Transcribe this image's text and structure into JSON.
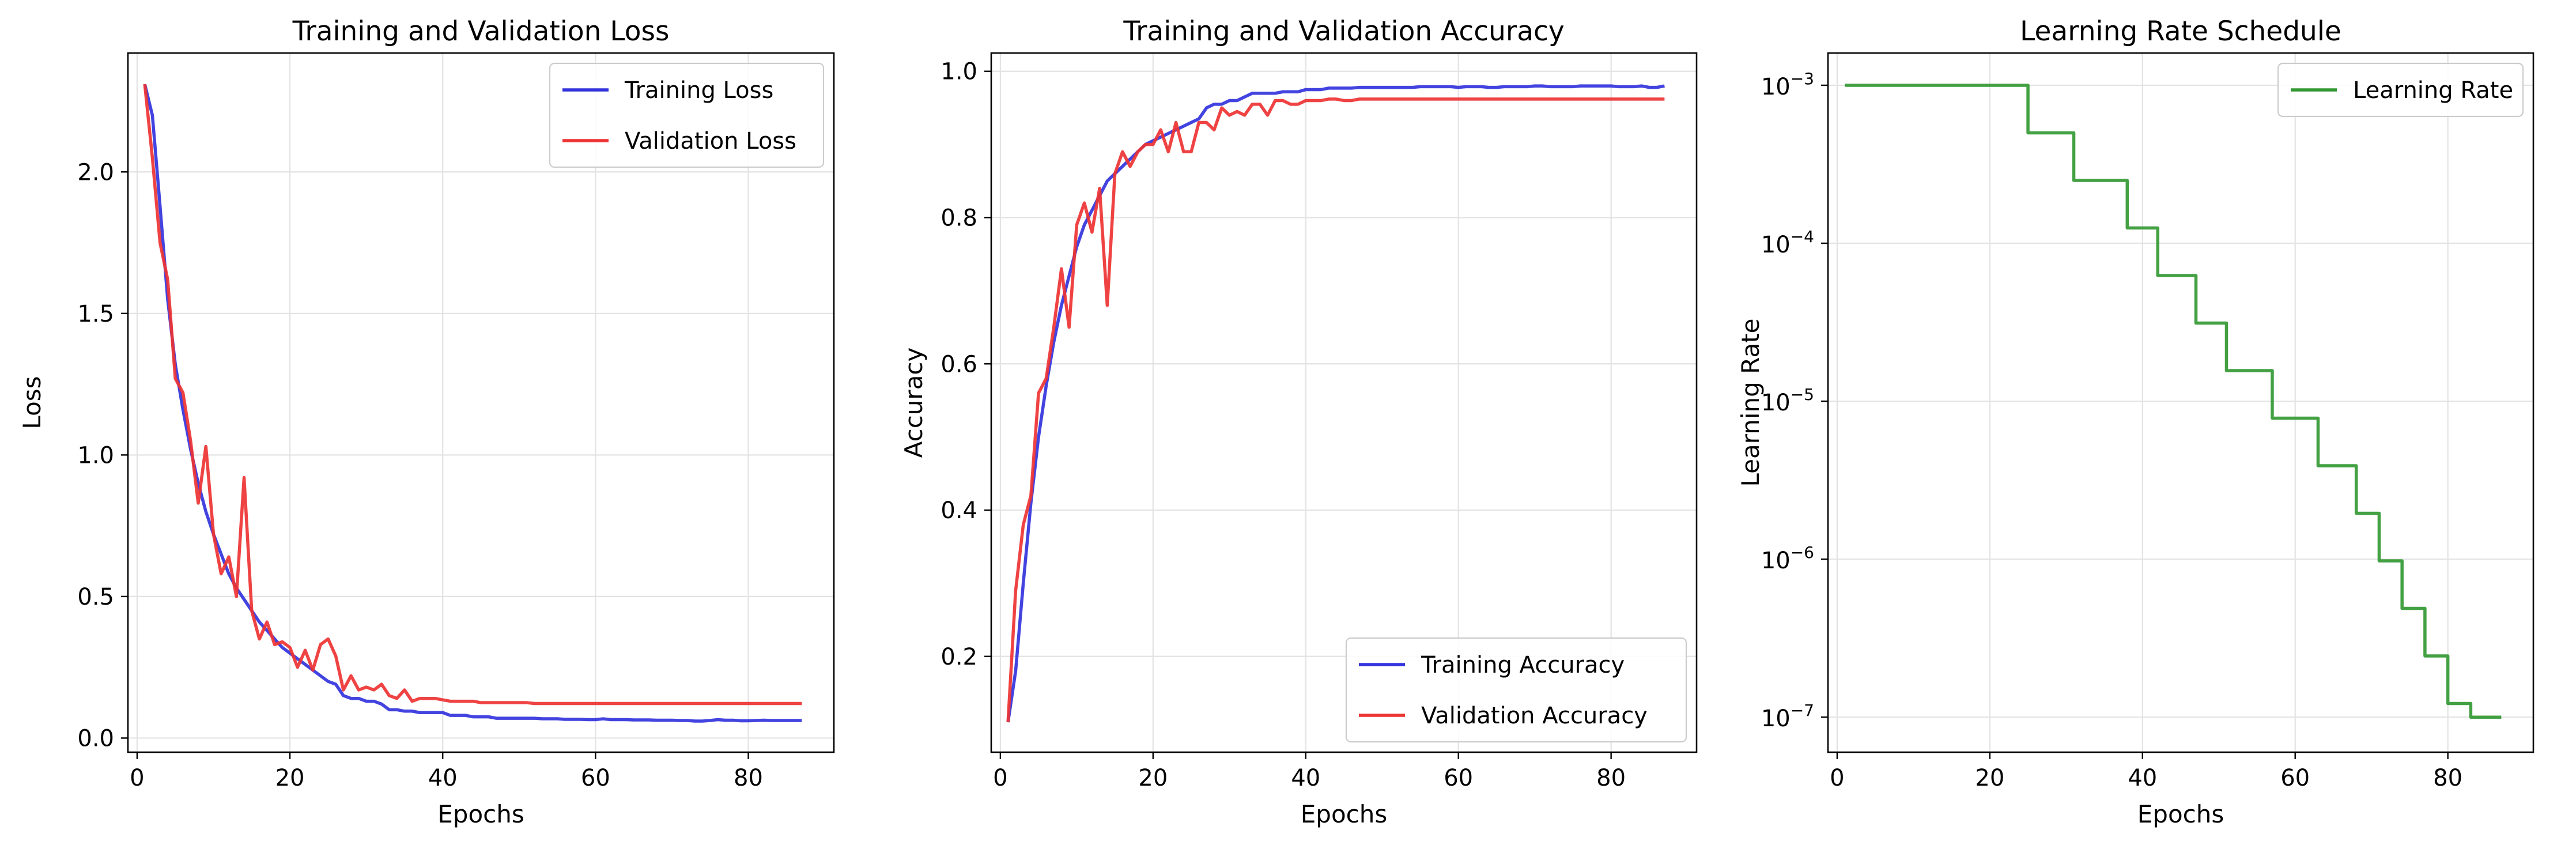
{
  "chart_data": [
    {
      "type": "line",
      "title": "Training and Validation Loss",
      "xlabel": "Epochs",
      "ylabel": "Loss",
      "xlim": [
        -1.2,
        91.2
      ],
      "ylim": [
        -0.05,
        2.42
      ],
      "xticks": [
        0,
        20,
        40,
        60,
        80
      ],
      "xtick_labels": [
        "0",
        "20",
        "40",
        "60",
        "80"
      ],
      "yticks": [
        0.0,
        0.5,
        1.0,
        1.5,
        2.0
      ],
      "ytick_labels": [
        "0.0",
        "0.5",
        "1.0",
        "1.5",
        "2.0"
      ],
      "grid": true,
      "legend": "upper-right",
      "series": [
        {
          "name": "Training Loss",
          "color": "#3333dd",
          "x": [
            1,
            2,
            3,
            4,
            5,
            6,
            7,
            8,
            9,
            10,
            11,
            12,
            13,
            14,
            15,
            16,
            17,
            18,
            19,
            20,
            21,
            22,
            23,
            24,
            25,
            26,
            27,
            28,
            29,
            30,
            31,
            32,
            33,
            34,
            35,
            36,
            37,
            38,
            39,
            40,
            41,
            42,
            43,
            44,
            45,
            46,
            47,
            48,
            49,
            50,
            51,
            52,
            53,
            54,
            55,
            56,
            57,
            58,
            59,
            60,
            61,
            62,
            63,
            64,
            65,
            66,
            67,
            68,
            69,
            70,
            71,
            72,
            73,
            74,
            75,
            76,
            77,
            78,
            79,
            80,
            81,
            82,
            83,
            84,
            85,
            86,
            87
          ],
          "y": [
            2.31,
            2.2,
            1.88,
            1.55,
            1.32,
            1.16,
            1.02,
            0.9,
            0.8,
            0.72,
            0.65,
            0.58,
            0.53,
            0.49,
            0.45,
            0.41,
            0.38,
            0.35,
            0.32,
            0.3,
            0.28,
            0.26,
            0.24,
            0.22,
            0.2,
            0.19,
            0.15,
            0.14,
            0.14,
            0.13,
            0.13,
            0.12,
            0.1,
            0.1,
            0.095,
            0.095,
            0.09,
            0.09,
            0.09,
            0.09,
            0.08,
            0.08,
            0.08,
            0.075,
            0.075,
            0.075,
            0.07,
            0.07,
            0.07,
            0.07,
            0.07,
            0.07,
            0.068,
            0.068,
            0.068,
            0.066,
            0.066,
            0.066,
            0.065,
            0.065,
            0.068,
            0.065,
            0.065,
            0.065,
            0.064,
            0.064,
            0.064,
            0.063,
            0.063,
            0.063,
            0.062,
            0.062,
            0.06,
            0.06,
            0.062,
            0.065,
            0.063,
            0.063,
            0.061,
            0.061,
            0.062,
            0.063,
            0.062,
            0.062,
            0.062,
            0.062,
            0.062
          ]
        },
        {
          "name": "Validation Loss",
          "color": "#ee3333",
          "x": [
            1,
            2,
            3,
            4,
            5,
            6,
            7,
            8,
            9,
            10,
            11,
            12,
            13,
            14,
            15,
            16,
            17,
            18,
            19,
            20,
            21,
            22,
            23,
            24,
            25,
            26,
            27,
            28,
            29,
            30,
            31,
            32,
            33,
            34,
            35,
            36,
            37,
            38,
            39,
            40,
            41,
            42,
            43,
            44,
            45,
            46,
            47,
            48,
            49,
            50,
            51,
            52,
            53,
            54,
            55,
            56,
            57,
            58,
            59,
            60,
            61,
            62,
            63,
            64,
            65,
            66,
            67,
            68,
            69,
            70,
            71,
            72,
            73,
            74,
            75,
            76,
            77,
            78,
            79,
            80,
            81,
            82,
            83,
            84,
            85,
            86,
            87
          ],
          "y": [
            2.31,
            2.05,
            1.75,
            1.62,
            1.27,
            1.22,
            1.05,
            0.83,
            1.03,
            0.72,
            0.58,
            0.64,
            0.5,
            0.92,
            0.45,
            0.35,
            0.41,
            0.33,
            0.34,
            0.32,
            0.25,
            0.31,
            0.24,
            0.33,
            0.35,
            0.29,
            0.17,
            0.22,
            0.17,
            0.18,
            0.17,
            0.19,
            0.15,
            0.14,
            0.17,
            0.13,
            0.14,
            0.14,
            0.14,
            0.135,
            0.13,
            0.13,
            0.13,
            0.13,
            0.125,
            0.125,
            0.125,
            0.125,
            0.125,
            0.125,
            0.125,
            0.122,
            0.122,
            0.122,
            0.122,
            0.122,
            0.122,
            0.122,
            0.122,
            0.122,
            0.122,
            0.122,
            0.122,
            0.122,
            0.122,
            0.122,
            0.122,
            0.122,
            0.122,
            0.122,
            0.122,
            0.122,
            0.122,
            0.122,
            0.122,
            0.122,
            0.122,
            0.122,
            0.122,
            0.122,
            0.122,
            0.122,
            0.122,
            0.122,
            0.122,
            0.122,
            0.122
          ]
        }
      ]
    },
    {
      "type": "line",
      "title": "Training and Validation Accuracy",
      "xlabel": "Epochs",
      "ylabel": "Accuracy",
      "xlim": [
        -1.2,
        91.2
      ],
      "ylim": [
        0.069,
        1.025
      ],
      "xticks": [
        0,
        20,
        40,
        60,
        80
      ],
      "xtick_labels": [
        "0",
        "20",
        "40",
        "60",
        "80"
      ],
      "yticks": [
        0.2,
        0.4,
        0.6,
        0.8,
        1.0
      ],
      "ytick_labels": [
        "0.2",
        "0.4",
        "0.6",
        "0.8",
        "1.0"
      ],
      "grid": true,
      "legend": "lower-right",
      "series": [
        {
          "name": "Training Accuracy",
          "color": "#3333dd",
          "x": [
            1,
            2,
            3,
            4,
            5,
            6,
            7,
            8,
            9,
            10,
            11,
            12,
            13,
            14,
            15,
            16,
            17,
            18,
            19,
            20,
            21,
            22,
            23,
            24,
            25,
            26,
            27,
            28,
            29,
            30,
            31,
            32,
            33,
            34,
            35,
            36,
            37,
            38,
            39,
            40,
            41,
            42,
            43,
            44,
            45,
            46,
            47,
            48,
            49,
            50,
            51,
            52,
            53,
            54,
            55,
            56,
            57,
            58,
            59,
            60,
            61,
            62,
            63,
            64,
            65,
            66,
            67,
            68,
            69,
            70,
            71,
            72,
            73,
            74,
            75,
            76,
            77,
            78,
            79,
            80,
            81,
            82,
            83,
            84,
            85,
            86,
            87
          ],
          "y": [
            0.11,
            0.18,
            0.3,
            0.41,
            0.5,
            0.57,
            0.63,
            0.68,
            0.72,
            0.76,
            0.79,
            0.81,
            0.83,
            0.85,
            0.86,
            0.87,
            0.88,
            0.89,
            0.9,
            0.905,
            0.91,
            0.915,
            0.92,
            0.925,
            0.93,
            0.935,
            0.95,
            0.955,
            0.955,
            0.96,
            0.96,
            0.965,
            0.97,
            0.97,
            0.97,
            0.97,
            0.972,
            0.972,
            0.972,
            0.975,
            0.975,
            0.975,
            0.977,
            0.977,
            0.977,
            0.977,
            0.978,
            0.978,
            0.978,
            0.978,
            0.978,
            0.978,
            0.978,
            0.978,
            0.979,
            0.979,
            0.979,
            0.979,
            0.979,
            0.978,
            0.979,
            0.979,
            0.979,
            0.978,
            0.978,
            0.979,
            0.979,
            0.979,
            0.979,
            0.98,
            0.98,
            0.979,
            0.979,
            0.979,
            0.979,
            0.98,
            0.98,
            0.98,
            0.98,
            0.98,
            0.979,
            0.979,
            0.979,
            0.98,
            0.978,
            0.978,
            0.98
          ]
        },
        {
          "name": "Validation Accuracy",
          "color": "#ee3333",
          "x": [
            1,
            2,
            3,
            4,
            5,
            6,
            7,
            8,
            9,
            10,
            11,
            12,
            13,
            14,
            15,
            16,
            17,
            18,
            19,
            20,
            21,
            22,
            23,
            24,
            25,
            26,
            27,
            28,
            29,
            30,
            31,
            32,
            33,
            34,
            35,
            36,
            37,
            38,
            39,
            40,
            41,
            42,
            43,
            44,
            45,
            46,
            47,
            48,
            49,
            50,
            51,
            52,
            53,
            54,
            55,
            56,
            57,
            58,
            59,
            60,
            61,
            62,
            63,
            64,
            65,
            66,
            67,
            68,
            69,
            70,
            71,
            72,
            73,
            74,
            75,
            76,
            77,
            78,
            79,
            80,
            81,
            82,
            83,
            84,
            85,
            86,
            87
          ],
          "y": [
            0.11,
            0.29,
            0.38,
            0.42,
            0.56,
            0.58,
            0.65,
            0.73,
            0.65,
            0.79,
            0.82,
            0.78,
            0.84,
            0.68,
            0.86,
            0.89,
            0.87,
            0.89,
            0.9,
            0.9,
            0.92,
            0.89,
            0.93,
            0.89,
            0.89,
            0.93,
            0.93,
            0.92,
            0.95,
            0.94,
            0.945,
            0.94,
            0.955,
            0.955,
            0.94,
            0.96,
            0.96,
            0.955,
            0.955,
            0.96,
            0.96,
            0.96,
            0.962,
            0.962,
            0.96,
            0.96,
            0.962,
            0.962,
            0.962,
            0.962,
            0.962,
            0.962,
            0.962,
            0.962,
            0.962,
            0.962,
            0.962,
            0.962,
            0.962,
            0.962,
            0.962,
            0.962,
            0.962,
            0.962,
            0.962,
            0.962,
            0.962,
            0.962,
            0.962,
            0.962,
            0.962,
            0.962,
            0.962,
            0.962,
            0.962,
            0.962,
            0.962,
            0.962,
            0.962,
            0.962,
            0.962,
            0.962,
            0.962,
            0.962,
            0.962,
            0.962,
            0.962
          ]
        }
      ]
    },
    {
      "type": "line",
      "title": "Learning Rate Schedule",
      "xlabel": "Epochs",
      "ylabel": "Learning Rate",
      "xscale": "linear",
      "yscale": "log",
      "xlim": [
        -1.2,
        91.2
      ],
      "ylim": [
        6e-08,
        0.0016
      ],
      "xticks": [
        0,
        20,
        40,
        60,
        80
      ],
      "xtick_labels": [
        "0",
        "20",
        "40",
        "60",
        "80"
      ],
      "yticks": [
        1e-07,
        1e-06,
        1e-05,
        0.0001,
        0.001
      ],
      "ytick_labels": [
        {
          "base": "10",
          "exp": "−7"
        },
        {
          "base": "10",
          "exp": "−6"
        },
        {
          "base": "10",
          "exp": "−5"
        },
        {
          "base": "10",
          "exp": "−4"
        },
        {
          "base": "10",
          "exp": "−3"
        }
      ],
      "grid": true,
      "legend": "upper-right",
      "series": [
        {
          "name": "Learning Rate",
          "color": "#339933",
          "step": true,
          "x": [
            1,
            25,
            31,
            38,
            42,
            47,
            51,
            57,
            63,
            68,
            71,
            74,
            77,
            80,
            83,
            87
          ],
          "y": [
            0.001,
            0.0005,
            0.00025,
            0.000125,
            6.25e-05,
            3.125e-05,
            1.5625e-05,
            7.8125e-06,
            3.90625e-06,
            1.953125e-06,
            9.765625e-07,
            4.8828125e-07,
            2.44140625e-07,
            1.220703125e-07,
            1e-07,
            1e-07
          ]
        }
      ]
    }
  ]
}
